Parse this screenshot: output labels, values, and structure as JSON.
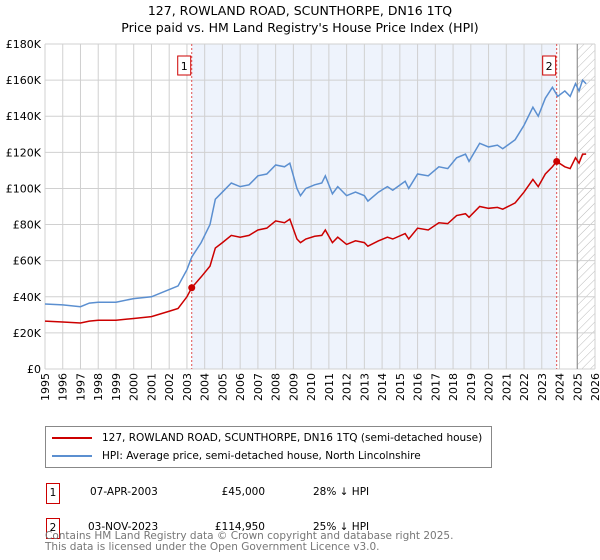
{
  "chart_data": {
    "type": "line",
    "title": "127, ROWLAND ROAD, SCUNTHORPE, DN16 1TQ",
    "subtitle": "Price paid vs. HM Land Registry's House Price Index (HPI)",
    "xlim": [
      1995,
      2026
    ],
    "ylim": [
      0,
      180000
    ],
    "x_ticks": [
      "1995",
      "1996",
      "1997",
      "1998",
      "1999",
      "2000",
      "2001",
      "2002",
      "2003",
      "2004",
      "2005",
      "2006",
      "2007",
      "2008",
      "2009",
      "2010",
      "2011",
      "2012",
      "2013",
      "2014",
      "2015",
      "2016",
      "2017",
      "2018",
      "2019",
      "2020",
      "2021",
      "2022",
      "2023",
      "2024",
      "2025",
      "2026"
    ],
    "y_ticks": [
      "£0",
      "£20K",
      "£40K",
      "£60K",
      "£80K",
      "£100K",
      "£120K",
      "£140K",
      "£160K",
      "£180K"
    ],
    "grid": true,
    "shaded_period": [
      2003.27,
      2023.84
    ],
    "forecast_from": 2025.0,
    "series": [
      {
        "name": "127, ROWLAND ROAD, SCUNTHORPE, DN16 1TQ (semi-detached house)",
        "color": "#cc0000",
        "x": [
          1995,
          1996,
          1997,
          1997.5,
          1998,
          1999,
          2000,
          2001,
          2002,
          2002.5,
          2003,
          2003.27,
          2003.8,
          2004.3,
          2004.6,
          2005,
          2005.5,
          2006,
          2006.5,
          2007,
          2007.5,
          2008,
          2008.5,
          2008.8,
          2009.2,
          2009.4,
          2009.7,
          2010.2,
          2010.6,
          2010.8,
          2011.2,
          2011.5,
          2012,
          2012.5,
          2013,
          2013.2,
          2013.8,
          2014.3,
          2014.6,
          2015.3,
          2015.5,
          2016,
          2016.6,
          2017.2,
          2017.7,
          2018.2,
          2018.7,
          2018.9,
          2019.5,
          2020,
          2020.5,
          2020.8,
          2021.5,
          2022,
          2022.5,
          2022.8,
          2023.2,
          2023.6,
          2023.84,
          2024.3,
          2024.6,
          2024.9,
          2025.1,
          2025.3,
          2025.5
        ],
        "y": [
          26500,
          26000,
          25500,
          26500,
          27000,
          27000,
          28000,
          29000,
          32000,
          33500,
          40000,
          45000,
          51000,
          57000,
          67000,
          70000,
          74000,
          73000,
          74000,
          77000,
          78000,
          82000,
          81000,
          83000,
          72000,
          70000,
          72000,
          73500,
          74000,
          77000,
          70000,
          73000,
          69000,
          71000,
          70000,
          68000,
          71000,
          73000,
          72000,
          75000,
          72000,
          78000,
          77000,
          81000,
          80500,
          85000,
          86000,
          84000,
          90000,
          89000,
          89500,
          88500,
          92000,
          98000,
          105000,
          101000,
          108000,
          112000,
          114950,
          112000,
          111000,
          117000,
          114000,
          119000,
          119000
        ]
      },
      {
        "name": "HPI: Average price, semi-detached house, North Lincolnshire",
        "color": "#5b8fd0",
        "x": [
          1995,
          1996,
          1997,
          1997.5,
          1998,
          1999,
          2000,
          2001,
          2002,
          2002.5,
          2003,
          2003.27,
          2003.8,
          2004.3,
          2004.6,
          2005,
          2005.5,
          2006,
          2006.5,
          2007,
          2007.5,
          2008,
          2008.5,
          2008.8,
          2009.2,
          2009.4,
          2009.7,
          2010.2,
          2010.6,
          2010.8,
          2011.2,
          2011.5,
          2012,
          2012.5,
          2013,
          2013.2,
          2013.8,
          2014.3,
          2014.6,
          2015.3,
          2015.5,
          2016,
          2016.6,
          2017.2,
          2017.7,
          2018.2,
          2018.7,
          2018.9,
          2019.5,
          2020,
          2020.5,
          2020.8,
          2021.5,
          2022,
          2022.5,
          2022.8,
          2023.2,
          2023.6,
          2023.9,
          2024.3,
          2024.6,
          2024.9,
          2025.1,
          2025.3,
          2025.5
        ],
        "y": [
          36000,
          35500,
          34500,
          36500,
          37000,
          37000,
          39000,
          40000,
          44000,
          46000,
          55000,
          62000,
          70000,
          80000,
          94000,
          98000,
          103000,
          101000,
          102000,
          107000,
          108000,
          113000,
          112000,
          114000,
          100000,
          96000,
          100000,
          102000,
          103000,
          107000,
          97000,
          101000,
          96000,
          98000,
          96000,
          93000,
          98000,
          101000,
          99000,
          104000,
          100000,
          108000,
          107000,
          112000,
          111000,
          117000,
          119000,
          115000,
          125000,
          123000,
          124000,
          122000,
          127000,
          135000,
          145000,
          140000,
          150000,
          156000,
          151000,
          154000,
          151000,
          158000,
          154000,
          160000,
          158000
        ]
      }
    ],
    "sales": [
      {
        "marker": "1",
        "x": 2003.27,
        "y": 45000,
        "date": "07-APR-2003",
        "price": "£45,000",
        "delta": "28% ↓ HPI"
      },
      {
        "marker": "2",
        "x": 2023.84,
        "y": 114950,
        "date": "03-NOV-2023",
        "price": "£114,950",
        "delta": "25% ↓ HPI"
      }
    ]
  },
  "footer": {
    "line1": "Contains HM Land Registry data © Crown copyright and database right 2025.",
    "line2": "This data is licensed under the Open Government Licence v3.0."
  }
}
